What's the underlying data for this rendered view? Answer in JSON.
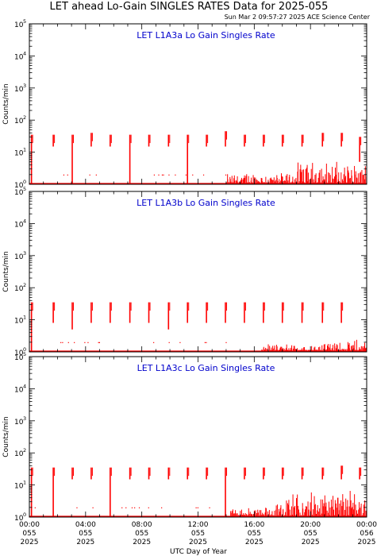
{
  "figure": {
    "title": "LET ahead Lo-Gain SINGLES RATES Data for 2025-055",
    "timestamp": "Sun Mar  2 09:57:27 2025 ACE Science Center",
    "xlabel": "UTC Day of Year",
    "ylabel": "Counts/min"
  },
  "colors": {
    "data": "#ff0000",
    "panel_title": "#0000cc",
    "axes": "#000000"
  },
  "chart_data": [
    {
      "type": "line",
      "title": "LET L1A3a Lo Gain Singles Rate",
      "ylabel": "Counts/min",
      "xlabel": "UTC Day of Year",
      "yscale": "log",
      "ylim": [
        1,
        100000
      ],
      "xlim": [
        0,
        24
      ],
      "y_ticks": [
        {
          "base": "10",
          "exp": "0"
        },
        {
          "base": "10",
          "exp": "1"
        },
        {
          "base": "10",
          "exp": "2"
        },
        {
          "base": "10",
          "exp": "3"
        },
        {
          "base": "10",
          "exp": "4"
        },
        {
          "base": "10",
          "exp": "5"
        }
      ],
      "baseline": 1.0,
      "spikes": [
        {
          "x": 0.15,
          "top": 35,
          "bottom": 1
        },
        {
          "x": 1.7,
          "top": 35,
          "bottom": 15
        },
        {
          "x": 3.05,
          "top": 35,
          "bottom": 1
        },
        {
          "x": 4.4,
          "top": 40,
          "bottom": 15
        },
        {
          "x": 5.75,
          "top": 35,
          "bottom": 15
        },
        {
          "x": 7.15,
          "top": 35,
          "bottom": 1
        },
        {
          "x": 8.5,
          "top": 35,
          "bottom": 15
        },
        {
          "x": 9.9,
          "top": 35,
          "bottom": 15
        },
        {
          "x": 11.25,
          "top": 35,
          "bottom": 1
        },
        {
          "x": 12.6,
          "top": 35,
          "bottom": 15
        },
        {
          "x": 13.95,
          "top": 45,
          "bottom": 15
        },
        {
          "x": 15.3,
          "top": 35,
          "bottom": 15
        },
        {
          "x": 16.65,
          "top": 35,
          "bottom": 15
        },
        {
          "x": 18.0,
          "top": 35,
          "bottom": 15
        },
        {
          "x": 19.4,
          "top": 35,
          "bottom": 15
        },
        {
          "x": 20.85,
          "top": 40,
          "bottom": 15
        },
        {
          "x": 22.2,
          "top": 40,
          "bottom": 15
        },
        {
          "x": 23.5,
          "top": 30,
          "bottom": 5
        }
      ],
      "noise_segments": [
        {
          "x0": 14.0,
          "x1": 19.0,
          "ymax": 2.5
        },
        {
          "x0": 19.0,
          "x1": 24.0,
          "ymax": 6
        }
      ]
    },
    {
      "type": "line",
      "title": "LET L1A3b Lo Gain Singles Rate",
      "ylabel": "Counts/min",
      "xlabel": "UTC Day of Year",
      "yscale": "log",
      "ylim": [
        1,
        100000
      ],
      "xlim": [
        0,
        24
      ],
      "y_ticks": [
        {
          "base": "10",
          "exp": "0"
        },
        {
          "base": "10",
          "exp": "1"
        },
        {
          "base": "10",
          "exp": "2"
        },
        {
          "base": "10",
          "exp": "3"
        },
        {
          "base": "10",
          "exp": "4"
        },
        {
          "base": "10",
          "exp": "5"
        }
      ],
      "baseline": 1.0,
      "spikes": [
        {
          "x": 0.15,
          "top": 35,
          "bottom": 1
        },
        {
          "x": 1.7,
          "top": 35,
          "bottom": 8
        },
        {
          "x": 3.05,
          "top": 35,
          "bottom": 5
        },
        {
          "x": 4.4,
          "top": 35,
          "bottom": 8
        },
        {
          "x": 5.75,
          "top": 35,
          "bottom": 8
        },
        {
          "x": 7.15,
          "top": 35,
          "bottom": 8
        },
        {
          "x": 8.5,
          "top": 35,
          "bottom": 8
        },
        {
          "x": 9.9,
          "top": 35,
          "bottom": 5
        },
        {
          "x": 11.25,
          "top": 35,
          "bottom": 8
        },
        {
          "x": 12.6,
          "top": 35,
          "bottom": 8
        },
        {
          "x": 13.95,
          "top": 35,
          "bottom": 8
        },
        {
          "x": 15.3,
          "top": 35,
          "bottom": 8
        },
        {
          "x": 16.65,
          "top": 35,
          "bottom": 8
        },
        {
          "x": 18.0,
          "top": 35,
          "bottom": 8
        },
        {
          "x": 19.4,
          "top": 35,
          "bottom": 8
        },
        {
          "x": 20.85,
          "top": 35,
          "bottom": 8
        },
        {
          "x": 22.2,
          "top": 35,
          "bottom": 8
        }
      ],
      "noise_segments": [
        {
          "x0": 16.5,
          "x1": 20.5,
          "ymax": 1.8
        },
        {
          "x0": 20.5,
          "x1": 24.0,
          "ymax": 2.5
        }
      ]
    },
    {
      "type": "line",
      "title": "LET L1A3c Lo Gain Singles Rate",
      "ylabel": "Counts/min",
      "xlabel": "UTC Day of Year",
      "yscale": "log",
      "ylim": [
        1,
        100000
      ],
      "xlim": [
        0,
        24
      ],
      "y_ticks": [
        {
          "base": "10",
          "exp": "0"
        },
        {
          "base": "10",
          "exp": "1"
        },
        {
          "base": "10",
          "exp": "2"
        },
        {
          "base": "10",
          "exp": "3"
        },
        {
          "base": "10",
          "exp": "4"
        },
        {
          "base": "10",
          "exp": "5"
        }
      ],
      "baseline": 1.0,
      "spikes": [
        {
          "x": 0.15,
          "top": 35,
          "bottom": 1
        },
        {
          "x": 1.7,
          "top": 35,
          "bottom": 1
        },
        {
          "x": 3.05,
          "top": 35,
          "bottom": 15
        },
        {
          "x": 4.4,
          "top": 35,
          "bottom": 15
        },
        {
          "x": 5.75,
          "top": 35,
          "bottom": 1
        },
        {
          "x": 7.15,
          "top": 35,
          "bottom": 15
        },
        {
          "x": 8.5,
          "top": 35,
          "bottom": 15
        },
        {
          "x": 9.9,
          "top": 35,
          "bottom": 15
        },
        {
          "x": 11.25,
          "top": 35,
          "bottom": 15
        },
        {
          "x": 12.6,
          "top": 35,
          "bottom": 15
        },
        {
          "x": 13.95,
          "top": 35,
          "bottom": 1
        },
        {
          "x": 15.3,
          "top": 35,
          "bottom": 15
        },
        {
          "x": 16.65,
          "top": 35,
          "bottom": 15
        },
        {
          "x": 18.0,
          "top": 35,
          "bottom": 15
        },
        {
          "x": 19.4,
          "top": 35,
          "bottom": 15
        },
        {
          "x": 20.85,
          "top": 35,
          "bottom": 15
        },
        {
          "x": 22.2,
          "top": 40,
          "bottom": 15
        },
        {
          "x": 23.5,
          "top": 35,
          "bottom": 15
        }
      ],
      "noise_segments": [
        {
          "x0": 14.3,
          "x1": 17.5,
          "ymax": 2.2
        },
        {
          "x0": 17.5,
          "x1": 24.0,
          "ymax": 8
        }
      ]
    }
  ],
  "x_ticks": [
    {
      "hour": 0,
      "time": "00:00",
      "doy": "055",
      "year": "2025"
    },
    {
      "hour": 4,
      "time": "04:00",
      "doy": "055",
      "year": "2025"
    },
    {
      "hour": 8,
      "time": "08:00",
      "doy": "055",
      "year": "2025"
    },
    {
      "hour": 12,
      "time": "12:00",
      "doy": "055",
      "year": "2025"
    },
    {
      "hour": 16,
      "time": "16:00",
      "doy": "055",
      "year": "2025"
    },
    {
      "hour": 20,
      "time": "20:00",
      "doy": "055",
      "year": "2025"
    },
    {
      "hour": 24,
      "time": "00:00",
      "doy": "056",
      "year": "2025"
    }
  ]
}
